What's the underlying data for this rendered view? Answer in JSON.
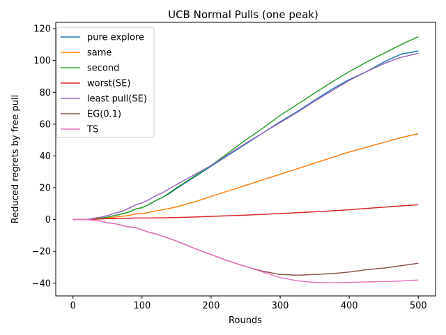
{
  "chart_data": {
    "type": "line",
    "title": "UCB Normal Pulls (one peak)",
    "xlabel": "Rounds",
    "ylabel": "Reduced regrets by free pull",
    "xlim": [
      -25,
      525
    ],
    "ylim": [
      -48,
      124
    ],
    "xticks": [
      0,
      100,
      200,
      300,
      400,
      500
    ],
    "yticks": [
      -40,
      -20,
      0,
      20,
      40,
      60,
      80,
      100,
      120
    ],
    "grid": false,
    "legend_position": "top-left",
    "series": [
      {
        "name": "pure explore",
        "color": "#1f77b4",
        "x": [
          0,
          20,
          30,
          40,
          50,
          60,
          70,
          80,
          90,
          100,
          110,
          120,
          130,
          140,
          150,
          175,
          200,
          225,
          250,
          275,
          300,
          325,
          350,
          375,
          400,
          425,
          450,
          475,
          500
        ],
        "y": [
          0,
          0,
          0.5,
          1,
          1.5,
          2.5,
          3.5,
          4.5,
          6.5,
          7.5,
          9.5,
          12,
          14,
          16.5,
          19.5,
          26.5,
          33.5,
          40.5,
          47.5,
          54.5,
          61.5,
          68,
          75,
          82,
          88,
          93,
          99,
          104,
          106
        ]
      },
      {
        "name": "same",
        "color": "#ff7f0e",
        "x": [
          0,
          20,
          30,
          40,
          50,
          60,
          70,
          80,
          90,
          100,
          110,
          120,
          130,
          140,
          150,
          175,
          200,
          225,
          250,
          275,
          300,
          325,
          350,
          375,
          400,
          425,
          450,
          475,
          500
        ],
        "y": [
          0,
          0,
          0.3,
          0.6,
          1,
          1.5,
          2,
          2.5,
          3.5,
          3.8,
          4.5,
          5.5,
          6.2,
          7,
          8,
          11,
          14.5,
          18,
          21.5,
          25,
          28.5,
          32,
          35.5,
          39,
          42.5,
          45.5,
          48.5,
          51.5,
          54
        ]
      },
      {
        "name": "second",
        "color": "#2ca02c",
        "x": [
          0,
          20,
          30,
          40,
          50,
          60,
          70,
          80,
          90,
          100,
          110,
          120,
          130,
          140,
          150,
          175,
          200,
          225,
          250,
          275,
          300,
          325,
          350,
          375,
          400,
          425,
          450,
          475,
          500
        ],
        "y": [
          0,
          0,
          0.5,
          1,
          1.5,
          2.5,
          3.5,
          4.5,
          6.5,
          7.5,
          9.5,
          12,
          14,
          17,
          20,
          27,
          34,
          42,
          50,
          57.5,
          65.5,
          72.5,
          79.5,
          86.5,
          93,
          99,
          104.5,
          110,
          115
        ]
      },
      {
        "name": "worst(SE)",
        "color": "#d62728",
        "x": [
          0,
          20,
          30,
          40,
          50,
          60,
          70,
          80,
          90,
          100,
          110,
          120,
          130,
          140,
          150,
          175,
          200,
          225,
          250,
          275,
          300,
          325,
          350,
          375,
          400,
          425,
          450,
          475,
          500
        ],
        "y": [
          0,
          0,
          0.2,
          0.4,
          0.6,
          0.6,
          0.7,
          0.8,
          1,
          1,
          1,
          1.1,
          1.1,
          1.2,
          1.3,
          1.6,
          2,
          2.4,
          2.8,
          3.3,
          3.8,
          4.3,
          4.9,
          5.5,
          6.2,
          7,
          7.8,
          8.6,
          9.3
        ]
      },
      {
        "name": "least pull(SE)",
        "color": "#9467bd",
        "x": [
          0,
          20,
          30,
          40,
          50,
          60,
          70,
          80,
          90,
          100,
          110,
          120,
          130,
          140,
          150,
          175,
          200,
          225,
          250,
          275,
          300,
          325,
          350,
          375,
          400,
          425,
          450,
          475,
          500
        ],
        "y": [
          0,
          0,
          0.8,
          1.5,
          2.5,
          4,
          5,
          7,
          9,
          10.5,
          12.5,
          15,
          17,
          19.5,
          22,
          28,
          34,
          41,
          48,
          54.5,
          61,
          67.5,
          74.5,
          81,
          87.5,
          93,
          98,
          102,
          104.5
        ]
      },
      {
        "name": "EG(0.1)",
        "color": "#8c564b",
        "x": [
          0,
          20,
          30,
          40,
          50,
          60,
          70,
          80,
          90,
          100,
          110,
          120,
          130,
          140,
          150,
          175,
          200,
          225,
          250,
          275,
          300,
          325,
          350,
          375,
          400,
          425,
          450,
          475,
          500
        ],
        "y": [
          0,
          0,
          -0.5,
          -1,
          -2,
          -2.5,
          -3.5,
          -4.5,
          -5,
          -6.5,
          -8,
          -9,
          -10.5,
          -12,
          -13.5,
          -18,
          -22,
          -26,
          -29.5,
          -32.5,
          -34.5,
          -35,
          -34.5,
          -34,
          -33,
          -31.5,
          -30.5,
          -29,
          -27.5
        ]
      },
      {
        "name": "TS",
        "color": "#e377c2",
        "x": [
          0,
          20,
          30,
          40,
          50,
          60,
          70,
          80,
          90,
          100,
          110,
          120,
          130,
          140,
          150,
          175,
          200,
          225,
          250,
          275,
          300,
          325,
          350,
          375,
          400,
          425,
          450,
          475,
          500
        ],
        "y": [
          0,
          0,
          -0.5,
          -1,
          -2,
          -2.5,
          -3.5,
          -4.5,
          -5,
          -6.5,
          -8,
          -9,
          -10.5,
          -12,
          -13.5,
          -18,
          -22,
          -26,
          -29.5,
          -33,
          -36.5,
          -38.5,
          -39.5,
          -39.8,
          -39.5,
          -39.2,
          -39,
          -38.6,
          -38
        ]
      }
    ]
  }
}
